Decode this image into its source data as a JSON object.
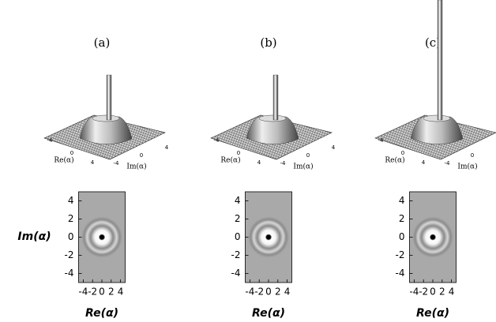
{
  "chart_data": [
    {
      "type": "density",
      "title": "(a)",
      "surface": {
        "xlabel": "Re(α)",
        "ylabel": "Im(α)",
        "xticks": [
          -4,
          0,
          4
        ],
        "yticks": [
          -4,
          0,
          4
        ]
      },
      "xlabel": "Re(α)",
      "ylabel": "Im(α)",
      "xlim": [
        -5,
        5
      ],
      "ylim": [
        -5,
        5
      ],
      "xticks": [
        -4,
        -2,
        0,
        2,
        4
      ],
      "yticks": [
        -4,
        -2,
        0,
        2,
        4
      ]
    },
    {
      "type": "density",
      "title": "(b)",
      "surface": {
        "xlabel": "Re(α)",
        "ylabel": "Im(α)",
        "xticks": [
          -4,
          0,
          4
        ],
        "yticks": [
          -4,
          0,
          4
        ]
      },
      "xlabel": "Re(α)",
      "xlim": [
        -5,
        5
      ],
      "ylim": [
        -5,
        5
      ],
      "xticks": [
        -4,
        -2,
        0,
        2,
        4
      ],
      "yticks": [
        -4,
        -2,
        0,
        2,
        4
      ]
    },
    {
      "type": "density",
      "title": "(c)",
      "surface": {
        "xlabel": "Re(α)",
        "ylabel": "Im(α)",
        "xticks": [
          -4,
          0,
          4
        ],
        "yticks": [
          -4,
          0,
          4
        ]
      },
      "xlabel": "Re(α)",
      "xlim": [
        -5,
        5
      ],
      "ylim": [
        -5,
        5
      ],
      "xticks": [
        -4,
        -2,
        0,
        2,
        4
      ],
      "yticks": [
        -4,
        -2,
        0,
        2,
        4
      ]
    }
  ]
}
